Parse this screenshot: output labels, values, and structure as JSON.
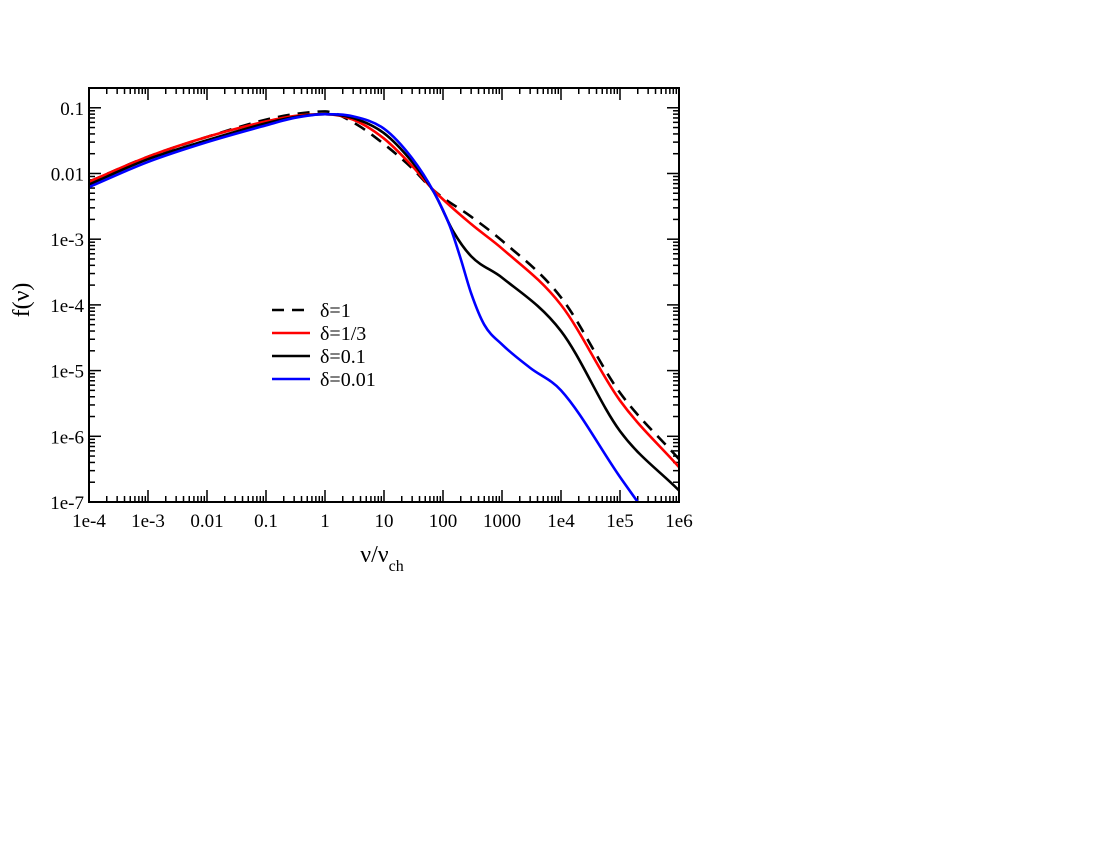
{
  "chart_data": {
    "type": "line",
    "title": "",
    "xlabel": {
      "main": "ν/ν",
      "sub": "ch"
    },
    "ylabel": "f(ν)",
    "xscale": "log",
    "yscale": "log",
    "xlim": [
      0.0001,
      1000000
    ],
    "ylim": [
      1e-07,
      0.2
    ],
    "x_ticks": [
      {
        "value": 0.0001,
        "label": "1e-4"
      },
      {
        "value": 0.001,
        "label": "1e-3"
      },
      {
        "value": 0.01,
        "label": "0.01"
      },
      {
        "value": 0.1,
        "label": "0.1"
      },
      {
        "value": 1,
        "label": "1"
      },
      {
        "value": 10,
        "label": "10"
      },
      {
        "value": 100,
        "label": "100"
      },
      {
        "value": 1000,
        "label": "1000"
      },
      {
        "value": 10000,
        "label": "1e4"
      },
      {
        "value": 100000,
        "label": "1e5"
      },
      {
        "value": 1000000,
        "label": "1e6"
      }
    ],
    "y_ticks": [
      {
        "value": 0.1,
        "label": "0.1"
      },
      {
        "value": 0.01,
        "label": "0.01"
      },
      {
        "value": 0.001,
        "label": "1e-3"
      },
      {
        "value": 0.0001,
        "label": "1e-4"
      },
      {
        "value": 1e-05,
        "label": "1e-5"
      },
      {
        "value": 1e-06,
        "label": "1e-6"
      },
      {
        "value": 1e-07,
        "label": "1e-7"
      }
    ],
    "grid": false,
    "legend_position": "center-left",
    "series": [
      {
        "name": "δ=1",
        "color": "#000000",
        "dash": "dashed",
        "x": [
          0.0001,
          0.001,
          0.01,
          0.1,
          0.3,
          1,
          3,
          10,
          30,
          70,
          300,
          1000,
          10000,
          100000,
          1000000
        ],
        "y": [
          0.0075,
          0.018,
          0.036,
          0.066,
          0.08,
          0.088,
          0.06,
          0.028,
          0.012,
          0.0055,
          0.0022,
          0.00095,
          0.00013,
          4.6e-06,
          4.5e-07
        ]
      },
      {
        "name": "δ=1/3",
        "color": "#ff0000",
        "dash": "solid",
        "x": [
          0.0001,
          0.001,
          0.01,
          0.1,
          0.3,
          1,
          3,
          10,
          30,
          70,
          300,
          1000,
          10000,
          100000,
          1000000
        ],
        "y": [
          0.0075,
          0.018,
          0.036,
          0.062,
          0.075,
          0.08,
          0.066,
          0.034,
          0.013,
          0.0055,
          0.0017,
          0.00072,
          0.0001,
          3.5e-06,
          3.4e-07
        ]
      },
      {
        "name": "δ=0.1",
        "color": "#000000",
        "dash": "solid",
        "x": [
          0.0001,
          0.001,
          0.01,
          0.1,
          0.3,
          1,
          3,
          10,
          30,
          70,
          150,
          300,
          1000,
          10000,
          100000,
          1000000
        ],
        "y": [
          0.0068,
          0.0165,
          0.032,
          0.058,
          0.072,
          0.08,
          0.07,
          0.041,
          0.015,
          0.0052,
          0.0013,
          0.00055,
          0.00026,
          4e-05,
          1.2e-06,
          1.5e-07
        ]
      },
      {
        "name": "δ=0.01",
        "color": "#0000ff",
        "dash": "solid",
        "x": [
          0.0001,
          0.001,
          0.01,
          0.1,
          0.3,
          1,
          3,
          10,
          30,
          70,
          130,
          200,
          300,
          500,
          1000,
          3000,
          10000,
          100000,
          200000
        ],
        "y": [
          0.0062,
          0.015,
          0.03,
          0.054,
          0.07,
          0.08,
          0.074,
          0.048,
          0.017,
          0.0052,
          0.0016,
          0.0005,
          0.00015,
          5e-05,
          2.5e-05,
          1.1e-05,
          5e-06,
          2.4e-07,
          1e-07
        ]
      }
    ]
  }
}
